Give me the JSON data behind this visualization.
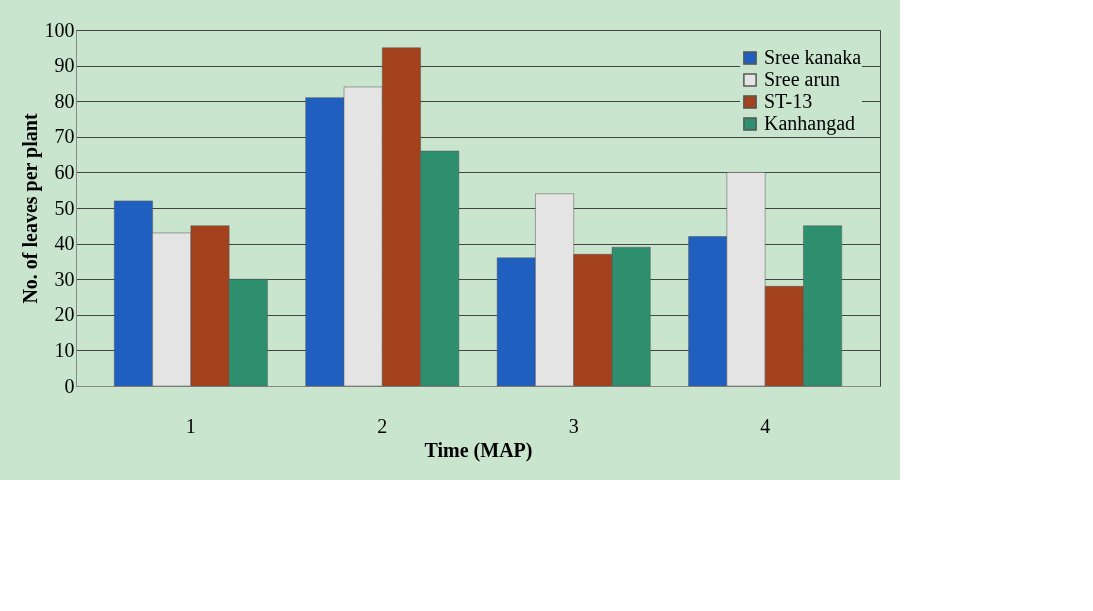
{
  "chart_data": {
    "type": "bar",
    "xlabel": "Time (MAP)",
    "ylabel": "No. of leaves per plant",
    "categories": [
      "1",
      "2",
      "3",
      "4"
    ],
    "series": [
      {
        "name": "Sree kanaka",
        "color": "#1f5fc0",
        "values": [
          52,
          81,
          36,
          42
        ]
      },
      {
        "name": "Sree arun",
        "color": "#e4e4e4",
        "values": [
          43,
          84,
          54,
          60
        ]
      },
      {
        "name": "ST-13",
        "color": "#a3421c",
        "values": [
          45,
          95,
          37,
          28
        ]
      },
      {
        "name": "Kanhangad",
        "color": "#2e8f6e",
        "values": [
          30,
          66,
          39,
          45
        ]
      }
    ],
    "ylim": [
      0,
      100
    ],
    "yticks": [
      0,
      10,
      20,
      30,
      40,
      50,
      60,
      70,
      80,
      90,
      100
    ],
    "grid": "y",
    "legend": "top right"
  }
}
